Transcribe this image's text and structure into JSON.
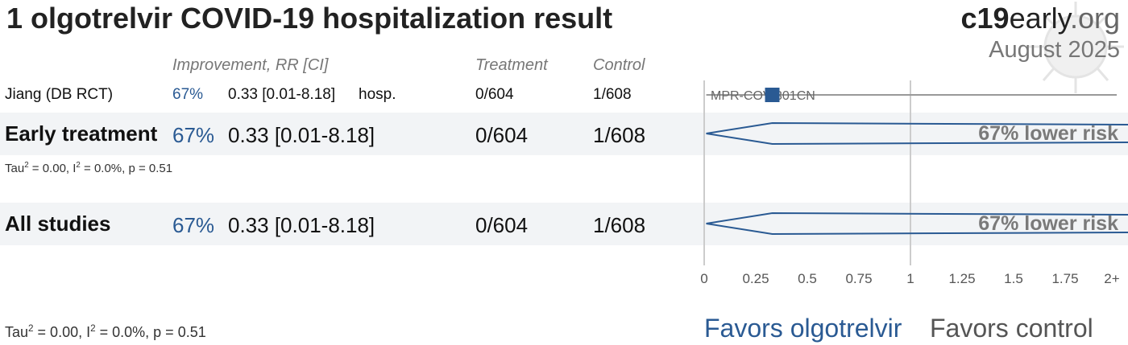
{
  "title": "1 olgotrelvir COVID-19 hospitalization result",
  "brand": {
    "part1": "c19",
    "part2": "early",
    "part3": ".org"
  },
  "date": "August 2025",
  "headers": {
    "improvement": "Improvement, RR [CI]",
    "treatment": "Treatment",
    "control": "Control"
  },
  "study": {
    "name": "Jiang (DB RCT)",
    "improvement": "67%",
    "rr": "0.33 [0.01-8.18]",
    "outcome": "hosp.",
    "treatment": "0/604",
    "control": "1/608",
    "trial_label": "MPR-COV-301CN"
  },
  "early": {
    "label": "Early treatment",
    "improvement": "67%",
    "rr": "0.33 [0.01-8.18]",
    "treatment": "0/604",
    "control": "1/608",
    "risk_text": "67% lower risk"
  },
  "early_stats": {
    "tau": "Tau",
    "i2": " = 0.00, I",
    "p": " = 0.0%, p = 0.51",
    "sup": "2"
  },
  "all": {
    "label": "All studies",
    "improvement": "67%",
    "rr": "0.33 [0.01-8.18]",
    "treatment": "0/604",
    "control": "1/608",
    "risk_text": "67% lower risk"
  },
  "all_stats": {
    "tau": "Tau",
    "i2": " = 0.00, I",
    "p": " = 0.0%, p = 0.51",
    "sup": "2"
  },
  "favors": {
    "left": "Favors olgotrelvir",
    "right": "Favors control"
  },
  "colors": {
    "accent": "#2a5a93",
    "band": "#f2f4f6",
    "axis": "#cccccc",
    "risk_text": "#7a7a7a"
  },
  "chart_data": {
    "type": "forest",
    "x_ticks": [
      "0",
      "0.25",
      "0.5",
      "0.75",
      "1",
      "1.25",
      "1.5",
      "1.75",
      "2+"
    ],
    "x_tick_values": [
      0,
      0.25,
      0.5,
      0.75,
      1,
      1.25,
      1.5,
      1.75,
      2
    ],
    "xlim": [
      0,
      2
    ],
    "reference_line": 1,
    "studies": [
      {
        "name": "Jiang (DB RCT)",
        "rr": 0.33,
        "ci": [
          0.01,
          8.18
        ]
      }
    ],
    "pooled": [
      {
        "name": "Early treatment",
        "rr": 0.33,
        "ci": [
          0.01,
          8.18
        ]
      },
      {
        "name": "All studies",
        "rr": 0.33,
        "ci": [
          0.01,
          8.18
        ]
      }
    ]
  }
}
